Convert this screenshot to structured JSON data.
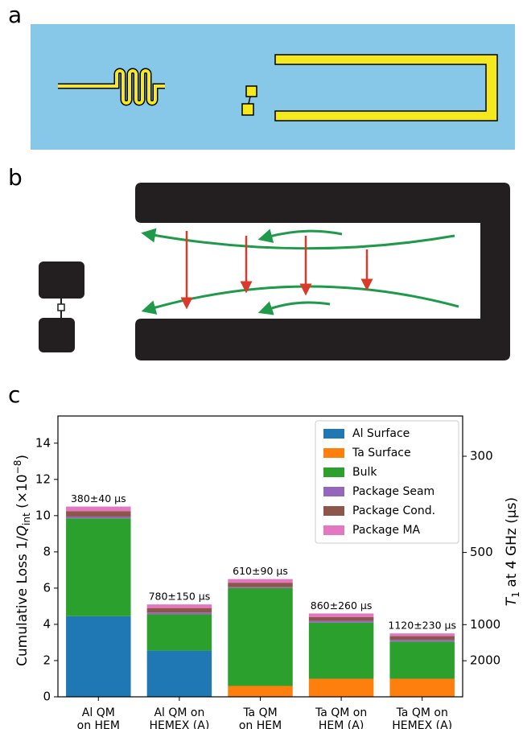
{
  "panel_labels": [
    "a",
    "b",
    "c"
  ],
  "chart_data": {
    "type": "stacked_bar",
    "ylabel_parts": [
      "Cumulative Loss 1/",
      "Q",
      "int",
      " (×10",
      "−8",
      ")"
    ],
    "y2label_parts": [
      "T",
      "1",
      " at 4 GHz (μs)"
    ],
    "categories": [
      "Al QM\non HEM",
      "Al QM on\nHEMEX (A)",
      "Ta QM\non HEM",
      "Ta QM on\nHEM (A)",
      "Ta QM on\nHEMEX (A)"
    ],
    "bar_labels": [
      "380±40 μs",
      "780±150 μs",
      "610±90 μs",
      "860±260 μs",
      "1120±230 μs"
    ],
    "series": [
      {
        "name": "Al Surface",
        "color": "#1f77b4",
        "values": [
          4.45,
          2.55,
          0,
          0,
          0
        ]
      },
      {
        "name": "Ta Surface",
        "color": "#ff7f0e",
        "values": [
          0,
          0,
          0.6,
          1.0,
          1.0
        ]
      },
      {
        "name": "Bulk",
        "color": "#2ca02c",
        "values": [
          5.4,
          2.0,
          5.4,
          3.1,
          2.05
        ]
      },
      {
        "name": "Package Seam",
        "color": "#9467bd",
        "values": [
          0.1,
          0.1,
          0.05,
          0.1,
          0.1
        ]
      },
      {
        "name": "Package Cond.",
        "color": "#8c564b",
        "values": [
          0.3,
          0.25,
          0.25,
          0.2,
          0.2
        ]
      },
      {
        "name": "Package MA",
        "color": "#e377c2",
        "values": [
          0.25,
          0.2,
          0.2,
          0.2,
          0.15
        ]
      }
    ],
    "ylim": [
      0,
      15.5
    ],
    "yticks": [
      0,
      2,
      4,
      6,
      8,
      10,
      12,
      14
    ],
    "y2scale": "reciprocal",
    "y2lim": [
      null,
      257
    ],
    "y2ticks": [
      300,
      500,
      1000,
      2000
    ],
    "legend": "upper right"
  }
}
